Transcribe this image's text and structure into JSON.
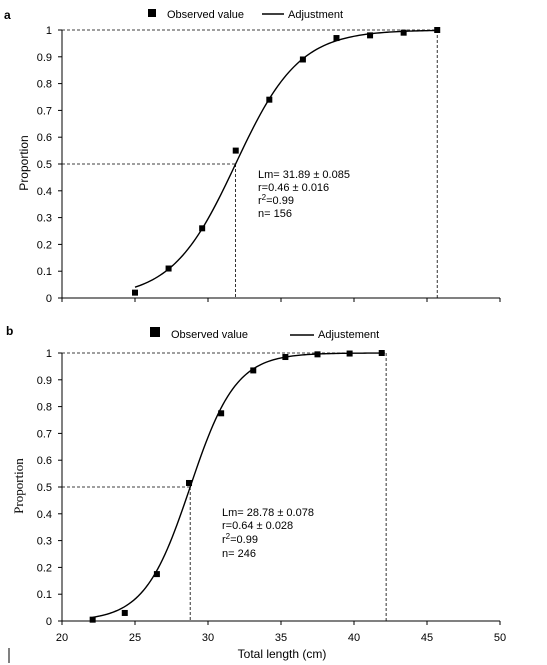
{
  "chart_data": [
    {
      "type": "scatter",
      "panel_label": "a",
      "legend": {
        "placement": "top-center",
        "observed": "Observed value",
        "fit": "Adjustment"
      },
      "xlabel": "",
      "ylabel": "Proportion",
      "xlim": [
        20,
        50
      ],
      "ylim": [
        0,
        1
      ],
      "xticks_labeled": false,
      "yticks": [
        "0",
        "0.1",
        "0.2",
        "0.3",
        "0.4",
        "0.5",
        "0.6",
        "0.7",
        "0.8",
        "0.9",
        "1"
      ],
      "grid": false,
      "series": [
        {
          "kind": "points",
          "x": [
            25,
            27.3,
            29.6,
            31.9,
            34.2,
            36.5,
            38.8,
            41.1,
            43.4,
            45.7
          ],
          "y": [
            0.02,
            0.11,
            0.26,
            0.55,
            0.74,
            0.89,
            0.97,
            0.98,
            0.99,
            1.0
          ]
        },
        {
          "kind": "fit",
          "lm": 31.89,
          "r": 0.46,
          "x_range": [
            25,
            45.7
          ]
        }
      ],
      "reference_lines": {
        "y50": 0.5,
        "x50": 31.89,
        "x_end": 45.7
      },
      "annotation": {
        "lm": "Lm= 31.89 ± 0.085",
        "r": "r=0.46 ± 0.016",
        "r2_prefix": "r",
        "r2_sup": "2",
        "r2_value": "=0.99",
        "n": "n= 156"
      }
    },
    {
      "type": "scatter",
      "panel_label": "b",
      "legend": {
        "placement": "top-center",
        "observed": "Observed   value",
        "fit": "Adjustement"
      },
      "xlabel": "Total length (cm)",
      "ylabel": "Proportion",
      "xlim": [
        20,
        50
      ],
      "ylim": [
        0,
        1
      ],
      "xticks": [
        "20",
        "25",
        "30",
        "35",
        "40",
        "45",
        "50"
      ],
      "yticks": [
        "0",
        "0.1",
        "0.2",
        "0.3",
        "0.4",
        "0.5",
        "0.6",
        "0.7",
        "0.8",
        "0.9",
        "1"
      ],
      "grid": false,
      "series": [
        {
          "kind": "points",
          "x": [
            22.1,
            24.3,
            26.5,
            28.7,
            30.9,
            33.1,
            35.3,
            37.5,
            39.7,
            41.9
          ],
          "y": [
            0.005,
            0.03,
            0.175,
            0.515,
            0.775,
            0.935,
            0.985,
            0.995,
            0.998,
            1.0
          ]
        },
        {
          "kind": "fit",
          "lm": 28.78,
          "r": 0.64,
          "x_range": [
            22.1,
            41.9
          ]
        }
      ],
      "reference_lines": {
        "y50": 0.5,
        "x50": 28.78,
        "x_end": 42.2
      },
      "annotation": {
        "lm": "Lm= 28.78 ± 0.078",
        "r": "r=0.64 ± 0.028",
        "r2_prefix": "r",
        "r2_sup": "2",
        "r2_value": "=0.99",
        "n": "n= 246"
      }
    }
  ]
}
